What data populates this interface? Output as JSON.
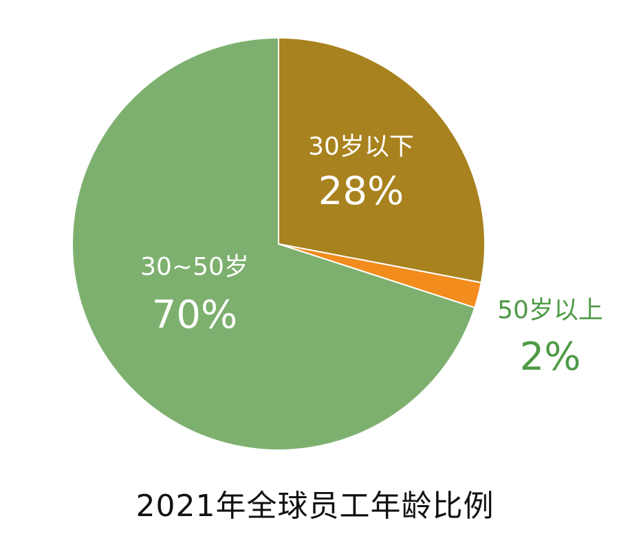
{
  "chart_data": {
    "type": "pie",
    "title": "2021年全球员工年龄比例",
    "start_angle_deg": 0,
    "direction": "clockwise",
    "slices": [
      {
        "label": "30岁以下",
        "value": 28,
        "value_label": "28%",
        "color": "#A8821E",
        "label_color": "#ffffff"
      },
      {
        "label": "50岁以上",
        "value": 2,
        "value_label": "2%",
        "color": "#F28C1C",
        "label_color": "#4E9A45",
        "label_placement": "outside"
      },
      {
        "label": "30~50岁",
        "value": 70,
        "value_label": "70%",
        "color": "#7DB06E",
        "label_color": "#ffffff"
      }
    ],
    "separator_color": "#ffffff"
  }
}
